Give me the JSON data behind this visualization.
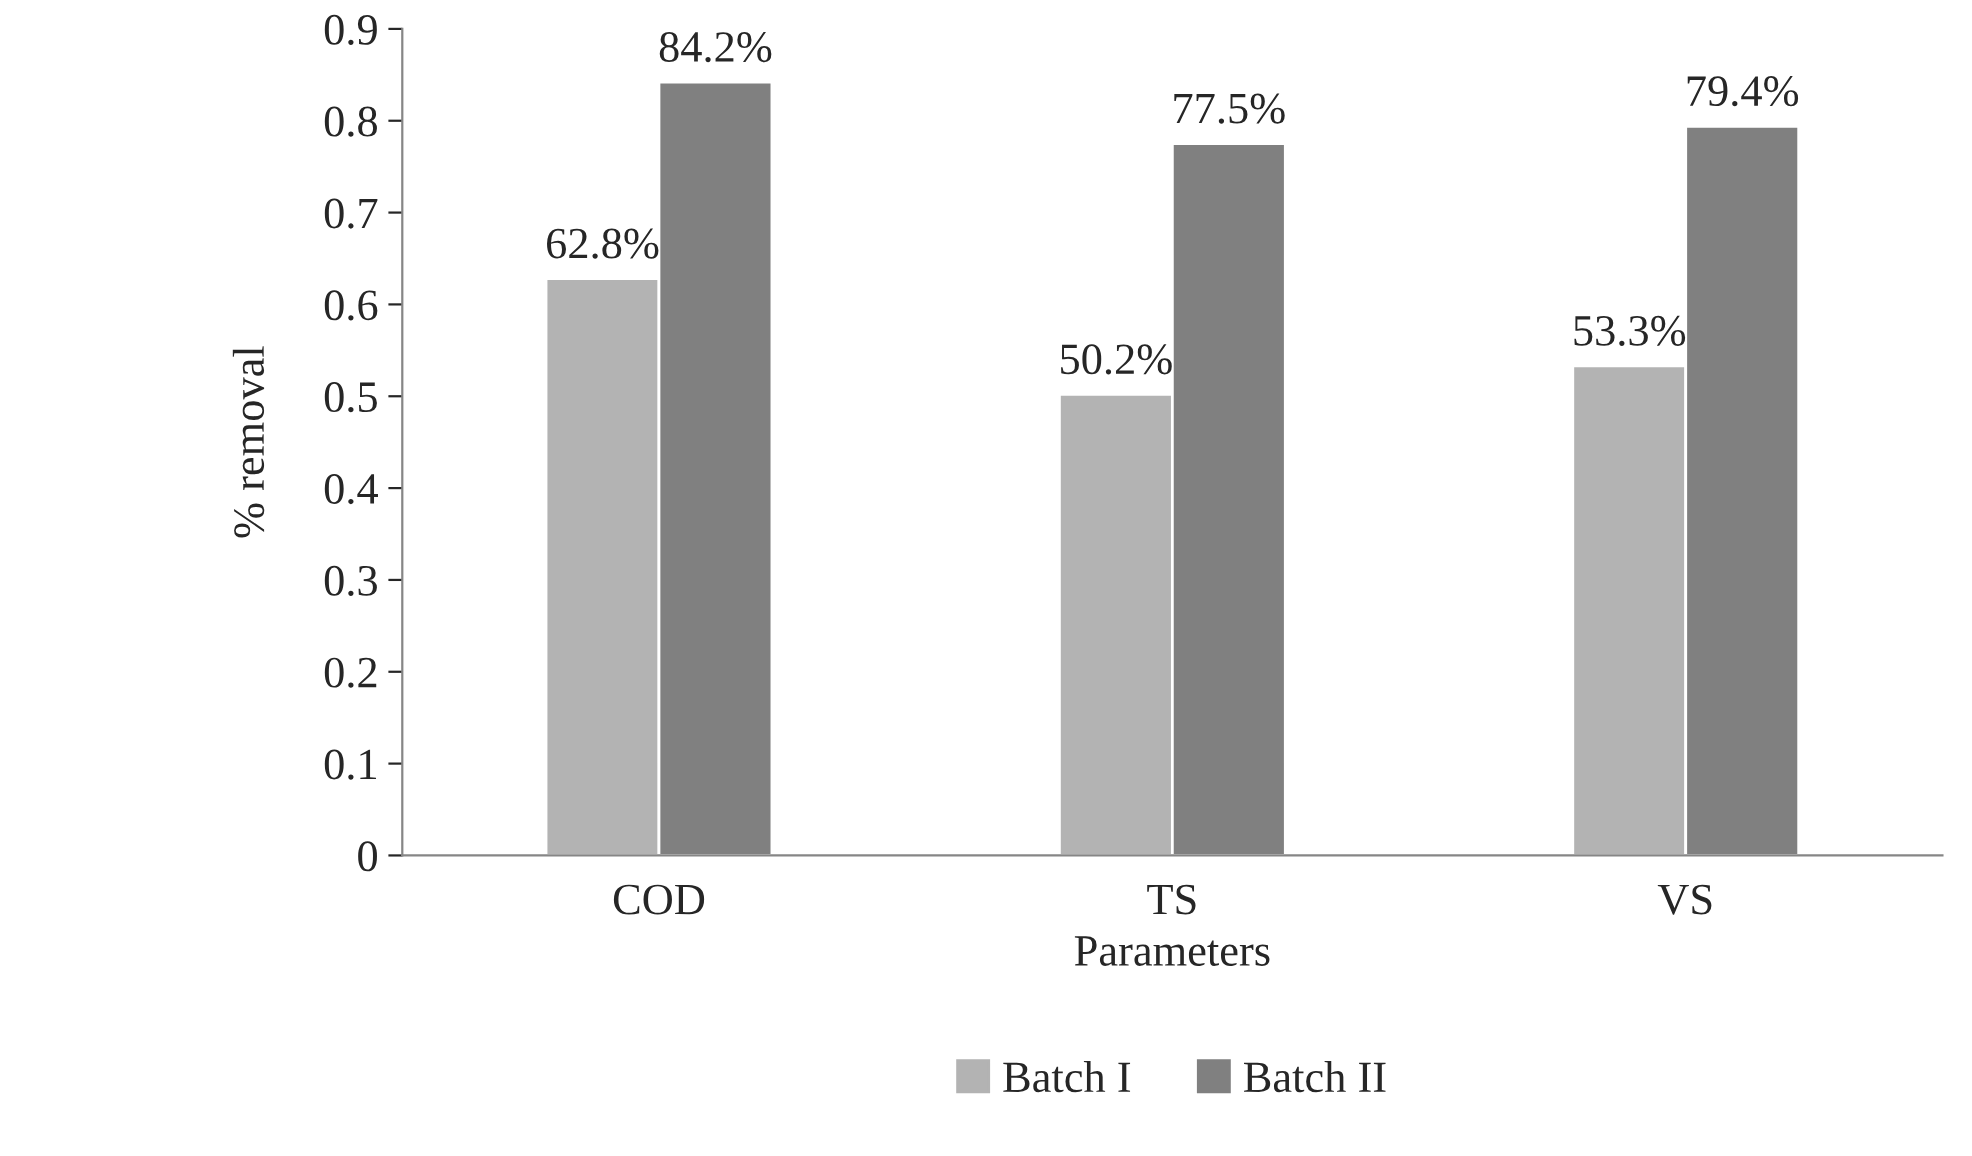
{
  "chart_data": {
    "type": "bar",
    "xlabel": "Parameters",
    "ylabel": "% removal",
    "categories": [
      "COD",
      "TS",
      "VS"
    ],
    "series": [
      {
        "name": "Batch I",
        "color": "#b3b3b3",
        "values": [
          0.628,
          0.502,
          0.533
        ],
        "value_labels": [
          "62.8%",
          "50.2%",
          "53.3%"
        ]
      },
      {
        "name": "Batch II",
        "color": "#808080",
        "values": [
          0.842,
          0.775,
          0.794
        ],
        "value_labels": [
          "84.2%",
          "77.5%",
          "79.4%"
        ]
      }
    ],
    "ylim": [
      0,
      0.9
    ],
    "yticks": [
      0,
      {
        "value": 0.1,
        "label": "0.1"
      },
      {
        "value": 0.2,
        "label": "0.2"
      },
      {
        "value": 0.3,
        "label": "0.3"
      },
      {
        "value": 0.4,
        "label": "0.4"
      },
      {
        "value": 0.5,
        "label": "0.5"
      },
      {
        "value": 0.6,
        "label": "0.6"
      },
      {
        "value": 0.7,
        "label": "0.7"
      },
      {
        "value": 0.8,
        "label": "0.8"
      },
      {
        "value": 0.9,
        "label": "0.9"
      }
    ],
    "legend": "bottom",
    "grid": false
  }
}
